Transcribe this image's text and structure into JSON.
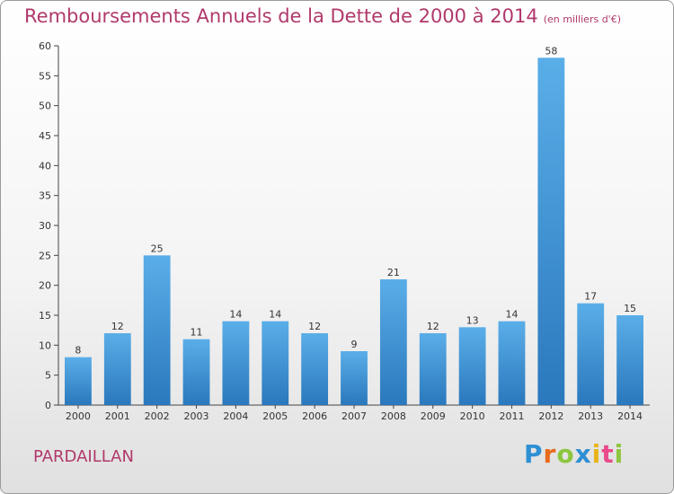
{
  "chart_data": {
    "type": "bar",
    "title": "Remboursements Annuels de la Dette de 2000 à 2014",
    "subtitle": "(en milliers d'€)",
    "categories": [
      "2000",
      "2001",
      "2002",
      "2003",
      "2004",
      "2005",
      "2006",
      "2007",
      "2008",
      "2009",
      "2010",
      "2011",
      "2012",
      "2013",
      "2014"
    ],
    "values": [
      8,
      12,
      25,
      11,
      14,
      14,
      12,
      9,
      21,
      12,
      13,
      14,
      58,
      17,
      15
    ],
    "ylim": [
      0,
      60
    ],
    "yticks": [
      0,
      5,
      10,
      15,
      20,
      25,
      30,
      35,
      40,
      45,
      50,
      55,
      60
    ],
    "grid": false,
    "bar_color": "#3a8fd0"
  },
  "footer": {
    "location": "PARDAILLAN",
    "logo": [
      "P",
      "r",
      "o",
      "x",
      "i",
      "t",
      "i"
    ]
  },
  "colors": {
    "title": "#b0396b",
    "logo": [
      "#2e8fd4",
      "#e86a1a",
      "#8dc63f",
      "#2e8fd4",
      "#e8b41a",
      "#e84a8a",
      "#8dc63f"
    ]
  }
}
